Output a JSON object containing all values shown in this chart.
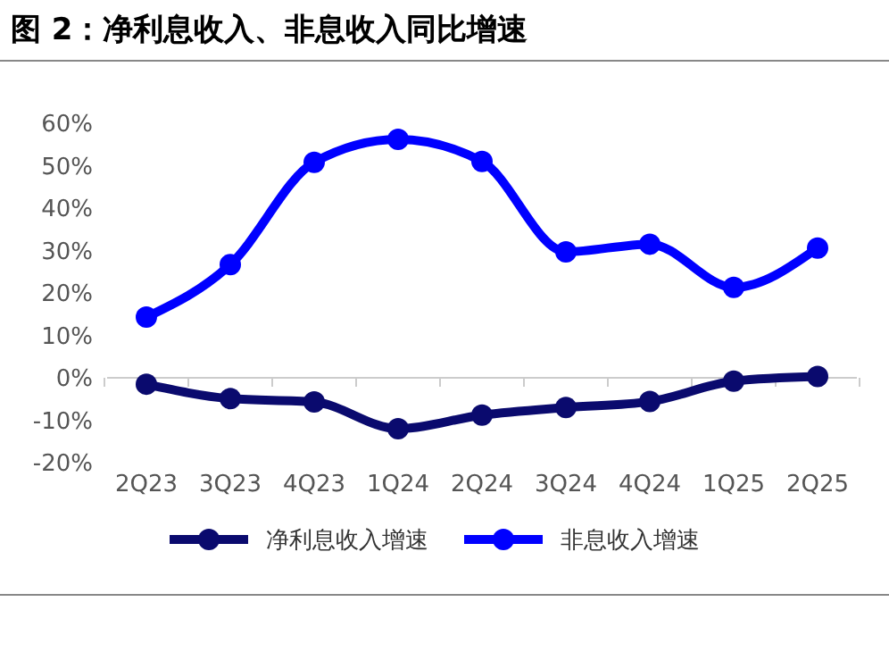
{
  "chart_data": {
    "type": "line",
    "title": "图 2：净利息收入、非息收入同比增速",
    "categories": [
      "2Q23",
      "3Q23",
      "4Q23",
      "1Q24",
      "2Q24",
      "3Q24",
      "4Q24",
      "1Q25",
      "2Q25"
    ],
    "series": [
      {
        "name": "净利息收入增速",
        "color": "#0a0a6e",
        "values": [
          -1.5,
          -4.9,
          -5.7,
          -12,
          -8.8,
          -7,
          -5.6,
          -0.8,
          0.3
        ]
      },
      {
        "name": "非息收入增速",
        "color": "#0000ff",
        "values": [
          14.3,
          26.7,
          50.8,
          56.2,
          51,
          29.7,
          31.5,
          21.3,
          30.6
        ]
      }
    ],
    "ylim": [
      -20,
      60
    ],
    "yticks": [
      {
        "value": -20,
        "label": "-20%"
      },
      {
        "value": -10,
        "label": "-10%"
      },
      {
        "value": 0,
        "label": "0%"
      },
      {
        "value": 10,
        "label": "10%"
      },
      {
        "value": 20,
        "label": "20%"
      },
      {
        "value": 30,
        "label": "30%"
      },
      {
        "value": 40,
        "label": "40%"
      },
      {
        "value": 50,
        "label": "50%"
      },
      {
        "value": 60,
        "label": "60%"
      }
    ],
    "legend": "bottom",
    "marker": "circle",
    "line_style": "solid"
  }
}
